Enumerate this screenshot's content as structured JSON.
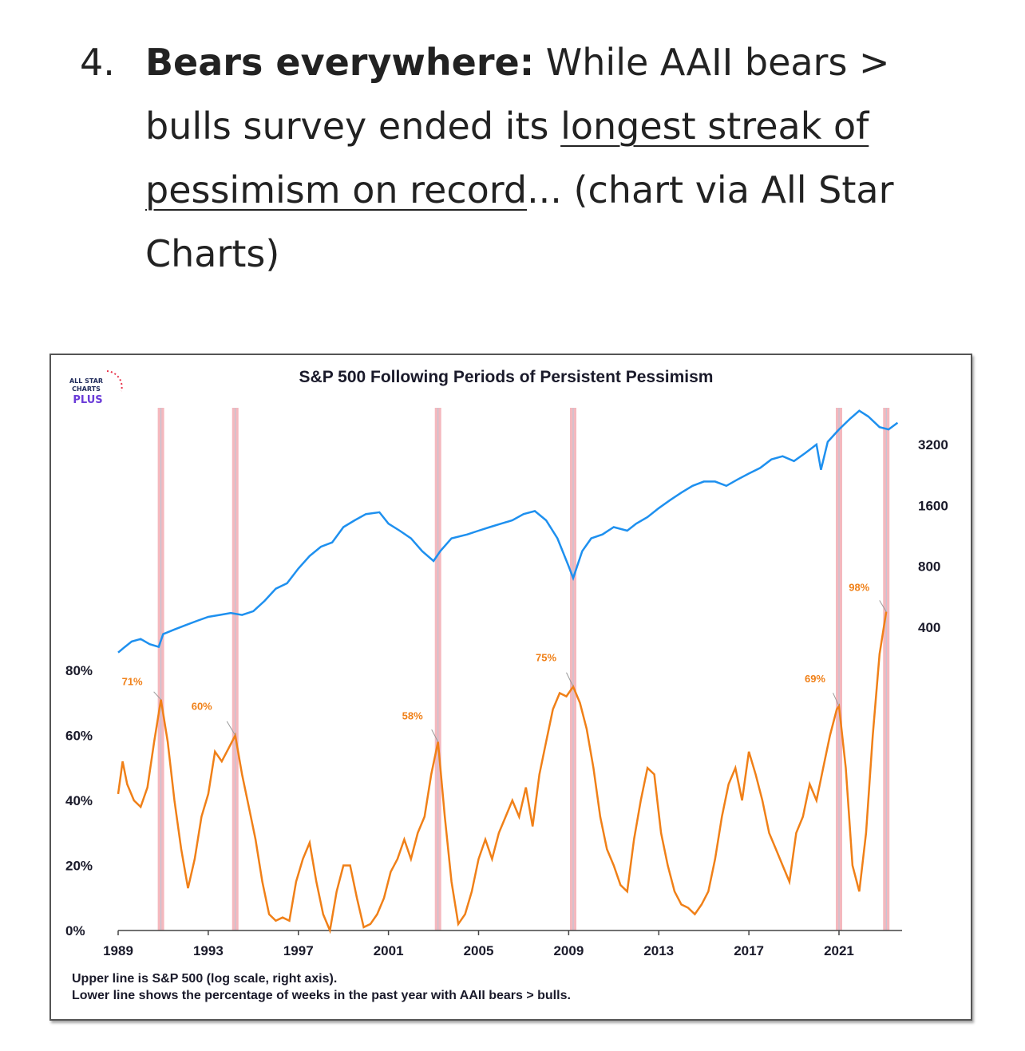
{
  "list_item": {
    "number": "4.",
    "heading": "Bears everywhere:",
    "text_before_link": " While AAII bears > bulls survey ended its ",
    "link_text": "longest streak of pessimism on record",
    "text_after_link": "... (chart via All Star Charts)"
  },
  "logo": {
    "line1": "ALL STAR",
    "line2": "CHARTS",
    "line3": "PLUS"
  },
  "colors": {
    "sp500": "#1E90EF",
    "bears": "#F08018",
    "shade": "#F4B8BE",
    "label": "#F08018"
  },
  "chart_data": {
    "type": "line",
    "title": "S&P 500 Following Periods of Persistent Pessimism",
    "notes": [
      "Upper line is S&P 500 (log scale, right axis).",
      "Lower line shows the percentage of weeks in the past year with AAII bears > bulls."
    ],
    "x_ticks": [
      1989,
      1993,
      1997,
      2001,
      2005,
      2009,
      2013,
      2017,
      2021
    ],
    "xlim": [
      1989,
      2023.8
    ],
    "left_axis": {
      "ticks": [
        "0%",
        "20%",
        "40%",
        "60%",
        "80%"
      ],
      "tick_values": [
        0,
        20,
        40,
        60,
        80
      ]
    },
    "right_axis": {
      "scale": "log",
      "ticks": [
        "400",
        "800",
        "1600",
        "3200"
      ],
      "tick_values": [
        400,
        800,
        1600,
        3200
      ]
    },
    "shaded_periods": [
      1990.9,
      1994.2,
      2003.2,
      2009.2,
      2021.0,
      2023.1
    ],
    "annotations": [
      {
        "label": "71%",
        "x": 1990.9,
        "y": 71
      },
      {
        "label": "60%",
        "x": 1994.2,
        "y": 60
      },
      {
        "label": "58%",
        "x": 2003.2,
        "y": 58
      },
      {
        "label": "75%",
        "x": 2009.2,
        "y": 75
      },
      {
        "label": "69%",
        "x": 2021.0,
        "y": 69
      },
      {
        "label": "98%",
        "x": 2023.1,
        "y": 98
      }
    ],
    "series": [
      {
        "x": [
          1989.0,
          1989.3,
          1989.6,
          1990.0,
          1990.4,
          1990.8,
          1991.0,
          1991.5,
          1992.0,
          1992.5,
          1993.0,
          1993.5,
          1994.0,
          1994.5,
          1995.0,
          1995.5,
          1996.0,
          1996.5,
          1997.0,
          1997.5,
          1998.0,
          1998.5,
          1999.0,
          1999.5,
          2000.0,
          2000.6,
          2001.0,
          2001.5,
          2002.0,
          2002.5,
          2003.0,
          2003.3,
          2003.8,
          2004.5,
          2005.0,
          2005.5,
          2006.0,
          2006.5,
          2007.0,
          2007.5,
          2008.0,
          2008.5,
          2009.0,
          2009.2,
          2009.6,
          2010.0,
          2010.5,
          2011.0,
          2011.6,
          2012.0,
          2012.5,
          2013.0,
          2013.5,
          2014.0,
          2014.5,
          2015.0,
          2015.5,
          2016.0,
          2016.5,
          2017.0,
          2017.5,
          2018.0,
          2018.5,
          2019.0,
          2019.5,
          2020.0,
          2020.2,
          2020.5,
          2021.0,
          2021.5,
          2021.9,
          2022.3,
          2022.8,
          2023.2,
          2023.6
        ],
        "values": [
          300,
          320,
          340,
          350,
          330,
          320,
          370,
          390,
          410,
          430,
          450,
          460,
          470,
          460,
          480,
          540,
          620,
          660,
          780,
          900,
          1000,
          1050,
          1250,
          1350,
          1450,
          1480,
          1300,
          1200,
          1100,
          950,
          850,
          950,
          1100,
          1150,
          1200,
          1250,
          1300,
          1350,
          1450,
          1500,
          1350,
          1100,
          800,
          700,
          950,
          1100,
          1150,
          1250,
          1200,
          1300,
          1400,
          1550,
          1700,
          1850,
          2000,
          2100,
          2100,
          2000,
          2150,
          2300,
          2450,
          2700,
          2800,
          2650,
          2900,
          3200,
          2400,
          3300,
          3800,
          4300,
          4700,
          4400,
          3900,
          3800,
          4100
        ]
      },
      {
        "x": [
          1989.0,
          1989.2,
          1989.4,
          1989.7,
          1990.0,
          1990.3,
          1990.6,
          1990.9,
          1991.2,
          1991.5,
          1991.8,
          1992.1,
          1992.4,
          1992.7,
          1993.0,
          1993.3,
          1993.6,
          1993.9,
          1994.2,
          1994.5,
          1994.8,
          1995.1,
          1995.4,
          1995.7,
          1996.0,
          1996.3,
          1996.6,
          1996.9,
          1997.2,
          1997.5,
          1997.8,
          1998.1,
          1998.4,
          1998.7,
          1999.0,
          1999.3,
          1999.6,
          1999.9,
          2000.2,
          2000.5,
          2000.8,
          2001.1,
          2001.4,
          2001.7,
          2002.0,
          2002.3,
          2002.6,
          2002.9,
          2003.2,
          2003.5,
          2003.8,
          2004.1,
          2004.4,
          2004.7,
          2005.0,
          2005.3,
          2005.6,
          2005.9,
          2006.2,
          2006.5,
          2006.8,
          2007.1,
          2007.4,
          2007.7,
          2008.0,
          2008.3,
          2008.6,
          2008.9,
          2009.2,
          2009.5,
          2009.8,
          2010.1,
          2010.4,
          2010.7,
          2011.0,
          2011.3,
          2011.6,
          2011.9,
          2012.2,
          2012.5,
          2012.8,
          2013.1,
          2013.4,
          2013.7,
          2014.0,
          2014.3,
          2014.6,
          2014.9,
          2015.2,
          2015.5,
          2015.8,
          2016.1,
          2016.4,
          2016.7,
          2017.0,
          2017.3,
          2017.6,
          2017.9,
          2018.2,
          2018.5,
          2018.8,
          2019.1,
          2019.4,
          2019.7,
          2020.0,
          2020.3,
          2020.6,
          2020.9,
          2021.0,
          2021.3,
          2021.6,
          2021.9,
          2022.2,
          2022.5,
          2022.8,
          2023.1
        ],
        "values": [
          42,
          52,
          45,
          40,
          38,
          44,
          58,
          71,
          58,
          40,
          25,
          13,
          22,
          35,
          42,
          55,
          52,
          56,
          60,
          48,
          38,
          28,
          15,
          5,
          3,
          4,
          3,
          15,
          22,
          27,
          15,
          5,
          0,
          12,
          20,
          20,
          10,
          1,
          2,
          5,
          10,
          18,
          22,
          28,
          22,
          30,
          35,
          48,
          58,
          35,
          15,
          2,
          5,
          12,
          22,
          28,
          22,
          30,
          35,
          40,
          35,
          44,
          32,
          48,
          58,
          68,
          73,
          72,
          75,
          70,
          62,
          50,
          35,
          25,
          20,
          14,
          12,
          28,
          40,
          50,
          48,
          30,
          20,
          12,
          8,
          7,
          5,
          8,
          12,
          22,
          35,
          45,
          50,
          40,
          55,
          48,
          40,
          30,
          25,
          20,
          15,
          30,
          35,
          45,
          40,
          50,
          60,
          68,
          69,
          50,
          20,
          12,
          30,
          60,
          85,
          98
        ]
      }
    ]
  }
}
